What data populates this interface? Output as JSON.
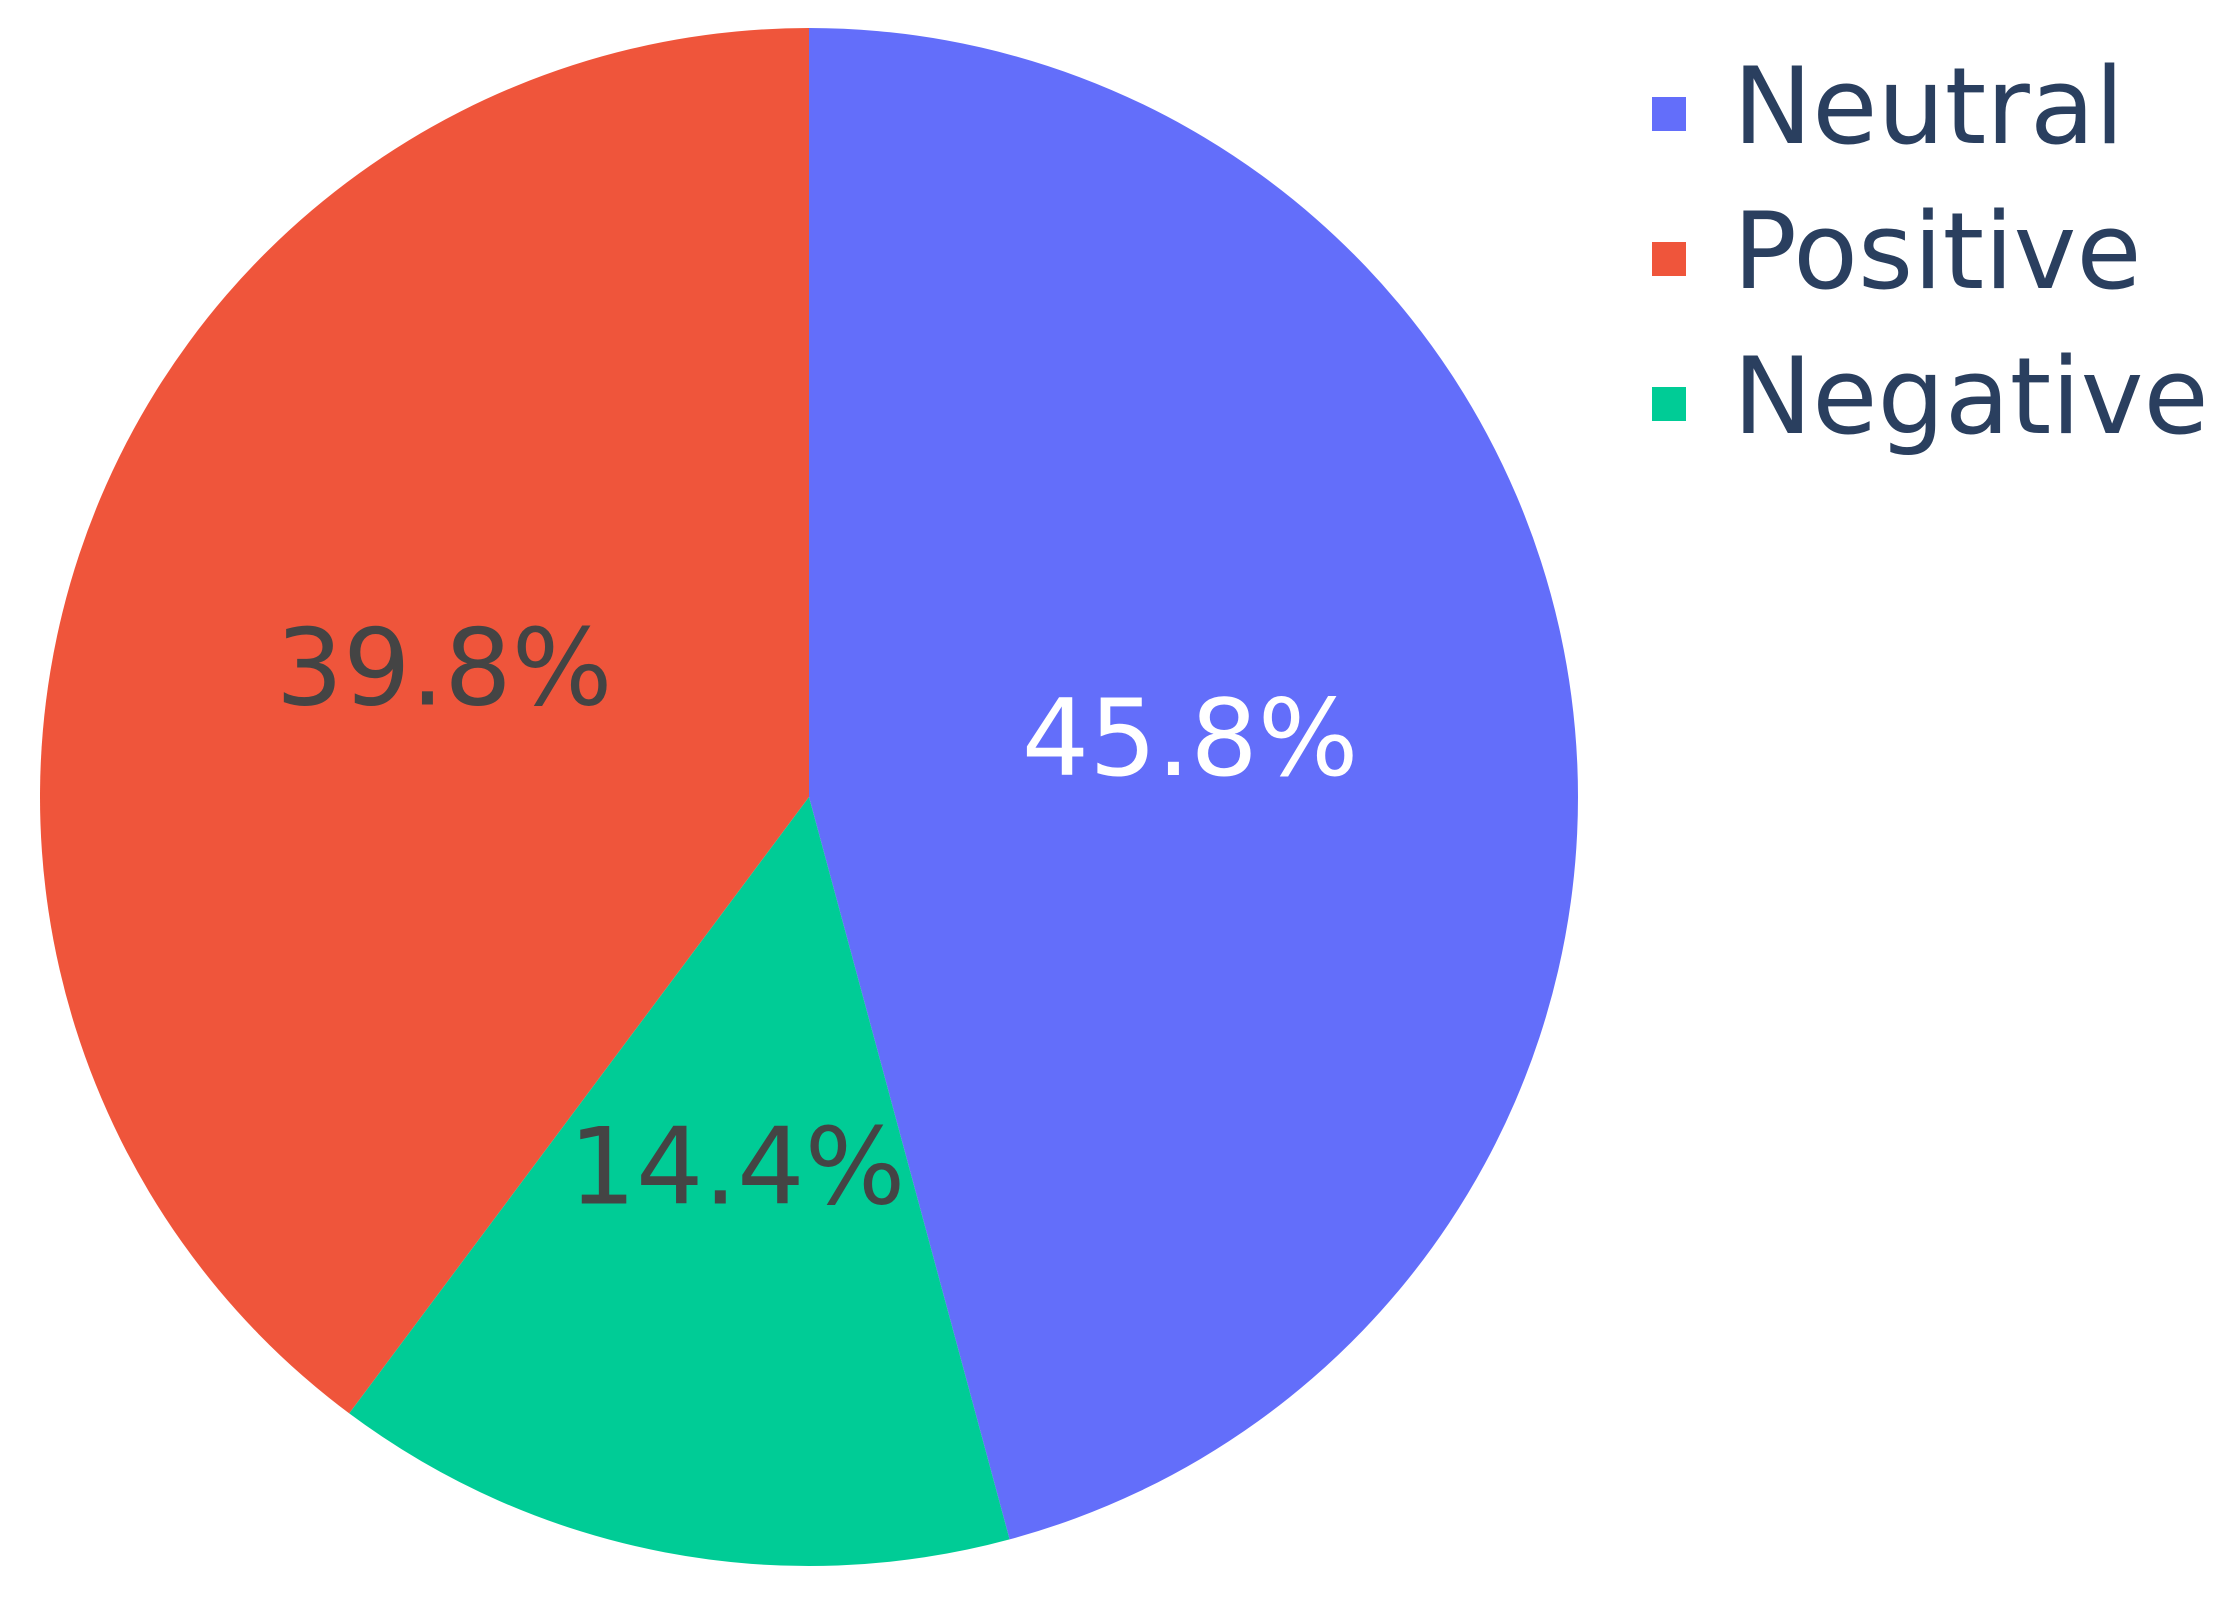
{
  "chart_data": {
    "type": "pie",
    "categories": [
      "Neutral",
      "Positive",
      "Negative"
    ],
    "values": [
      45.8,
      39.8,
      14.4
    ],
    "value_labels": [
      "45.8%",
      "39.8%",
      "14.4%"
    ],
    "colors": [
      "#636efa",
      "#ef553b",
      "#00cc96"
    ],
    "legend": "top-right"
  }
}
